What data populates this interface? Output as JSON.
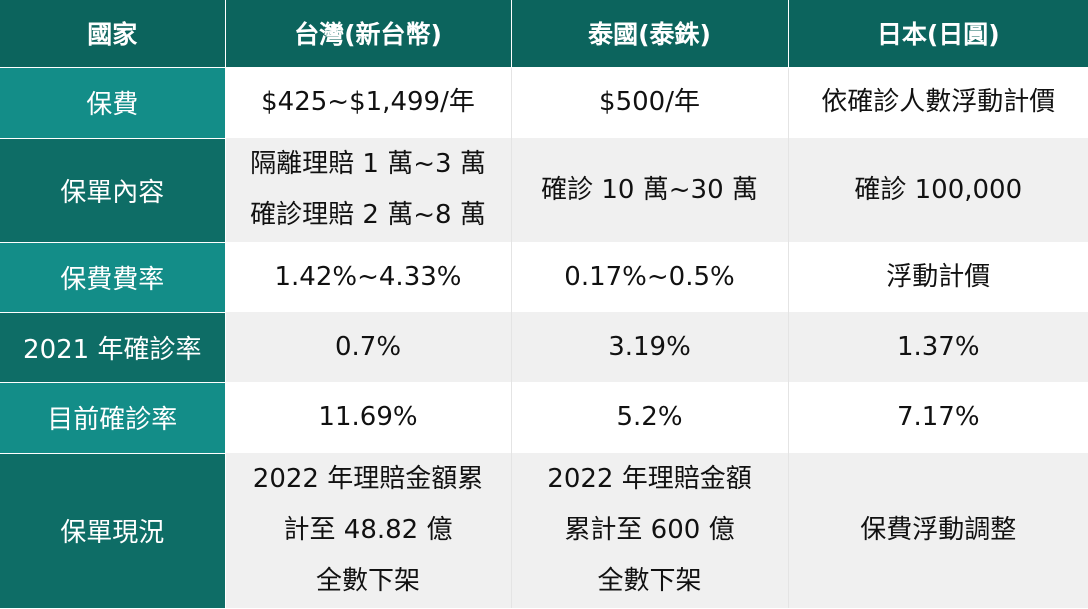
{
  "header": {
    "category": "國家",
    "countries": [
      "台灣(新台幣)",
      "泰國(泰銖)",
      "日本(日圓)"
    ]
  },
  "rows": [
    {
      "label": "保費",
      "cells": [
        [
          "$425~$1,499/年"
        ],
        [
          "$500/年"
        ],
        [
          "依確診人數浮動計價"
        ]
      ]
    },
    {
      "label": "保單內容",
      "cells": [
        [
          "隔離理賠 1 萬~3 萬",
          "確診理賠 2 萬~8 萬"
        ],
        [
          "確診 10 萬~30 萬"
        ],
        [
          "確診 100,000"
        ]
      ]
    },
    {
      "label": "保費費率",
      "cells": [
        [
          "1.42%~4.33%"
        ],
        [
          "0.17%~0.5%"
        ],
        [
          "浮動計價"
        ]
      ]
    },
    {
      "label": "2021 年確診率",
      "cells": [
        [
          "0.7%"
        ],
        [
          "3.19%"
        ],
        [
          "1.37%"
        ]
      ]
    },
    {
      "label": "目前確診率",
      "cells": [
        [
          "11.69%"
        ],
        [
          "5.2%"
        ],
        [
          "7.17%"
        ]
      ]
    },
    {
      "label": "保單現況",
      "cells": [
        [
          "2022 年理賠金額累",
          "計至 48.82 億",
          "全數下架"
        ],
        [
          "2022 年理賠金額",
          "累計至 600 億",
          "全數下架"
        ],
        [
          "保費浮動調整"
        ]
      ]
    }
  ],
  "colors": {
    "header_bg": "#0c645d",
    "rowhead_light": "#138d88",
    "rowhead_dark": "#0e6d66",
    "band": "#f0f0f0"
  }
}
